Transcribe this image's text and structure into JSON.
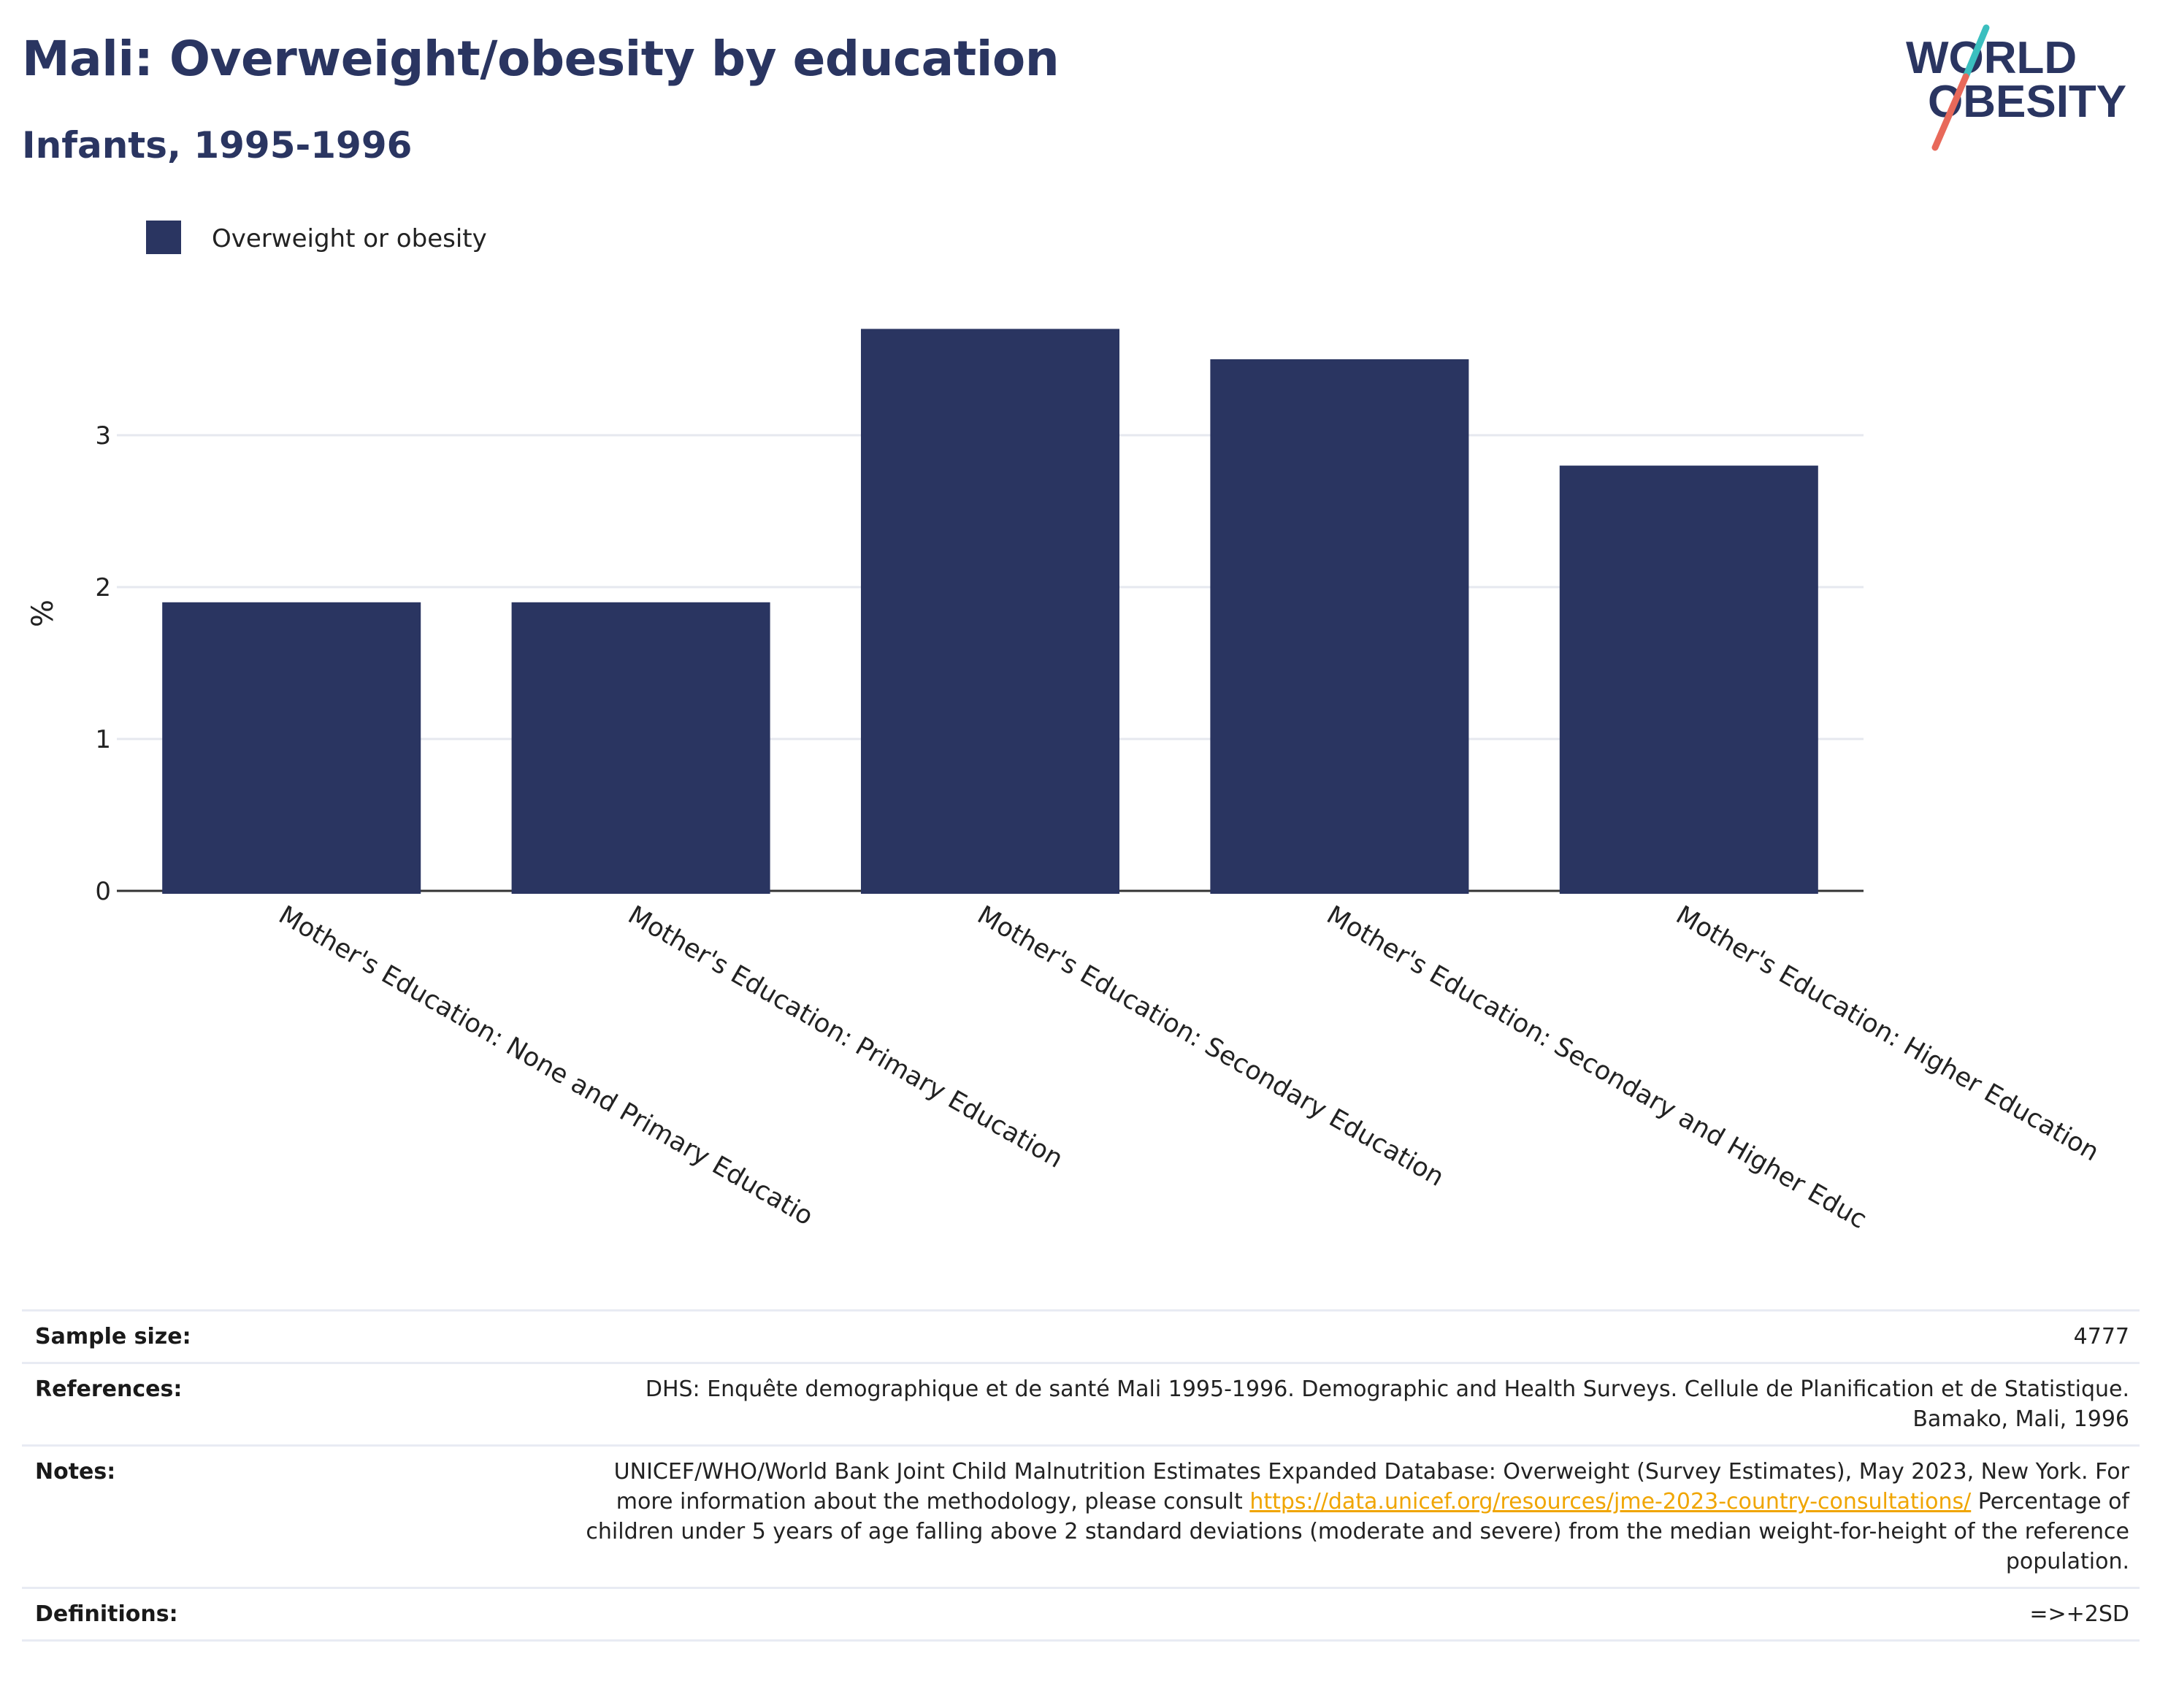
{
  "header": {
    "title": "Mali: Overweight/obesity by education",
    "subtitle": "Infants, 1995-1996"
  },
  "logo": {
    "line1": "WORLD",
    "line2": "OBESITY"
  },
  "colors": {
    "bar": "#2a3561",
    "title": "#2a3561",
    "link": "#f0a500",
    "logo_teal": "#3bbfbf",
    "logo_coral": "#e8695a"
  },
  "chart_data": {
    "type": "bar",
    "categories": [
      "Mother's Education: None and Primary Educatio",
      "Mother's Education: Primary Education",
      "Mother's Education: Secondary Education",
      "Mother's Education: Secondary and Higher Educ",
      "Mother's Education: Higher Education"
    ],
    "series": [
      {
        "name": "Overweight or obesity",
        "values": [
          1.9,
          1.9,
          3.7,
          3.5,
          2.8
        ]
      }
    ],
    "ylabel": "%",
    "yticks": [
      0,
      1,
      2,
      3
    ],
    "ylim": [
      0,
      3.75
    ],
    "grid": true,
    "legend": "top-left"
  },
  "info": {
    "sample_size": {
      "label": "Sample size:",
      "value": "4777"
    },
    "references": {
      "label": "References:",
      "value": "DHS: Enquête demographique et de santé Mali 1995-1996. Demographic and Health Surveys. Cellule de Planification et de Statistique. Bamako, Mali, 1996"
    },
    "notes": {
      "label": "Notes:",
      "text_before": "UNICEF/WHO/World Bank Joint Child Malnutrition Estimates Expanded Database: Overweight (Survey Estimates), May 2023, New York. For more information about the methodology, please consult ",
      "link": "https://data.unicef.org/resources/jme-2023-country-consultations/",
      "text_after": " Percentage of children under 5 years of age falling above 2 standard deviations (moderate and severe) from the median weight-for-height of the reference population."
    },
    "definitions": {
      "label": "Definitions:",
      "value": "=>+2SD"
    }
  }
}
